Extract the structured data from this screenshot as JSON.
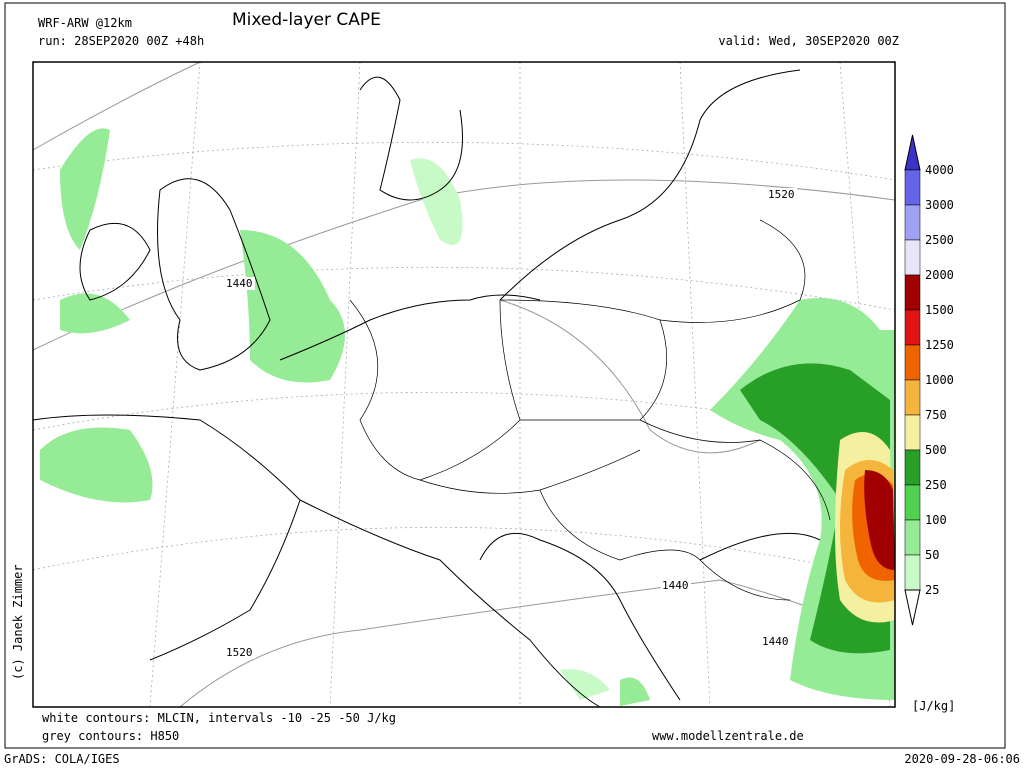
{
  "header": {
    "model": "WRF-ARW @12km",
    "title": "Mixed-layer CAPE",
    "run": "run: 28SEP2020 00Z +48h",
    "valid": "valid: Wed, 30SEP2020 00Z"
  },
  "colorbar": {
    "labels": [
      4000,
      3000,
      2500,
      2000,
      1500,
      1250,
      1000,
      750,
      500,
      250,
      100,
      50,
      25
    ],
    "colors": [
      "#3c32c8",
      "#6464e6",
      "#a0a0f5",
      "#e6e6f8",
      "#a00000",
      "#e01414",
      "#f06400",
      "#f5b43c",
      "#f5f0a0",
      "#28a028",
      "#50d250",
      "#96eb96",
      "#c8fac8",
      "#ffffff"
    ],
    "unit": "[J/kg]"
  },
  "contour_labels": [
    1520,
    1440,
    1440,
    1440,
    1520
  ],
  "credit": "(c) Janek Zimmer",
  "footer": {
    "line1": "white contours: MLCIN, intervals -10 -25 -50 J/kg",
    "line2": "grey contours: H850",
    "website": "www.modellzentrale.de",
    "grads": "GrADS: COLA/IGES",
    "timestamp": "2020-09-28-06:06"
  }
}
